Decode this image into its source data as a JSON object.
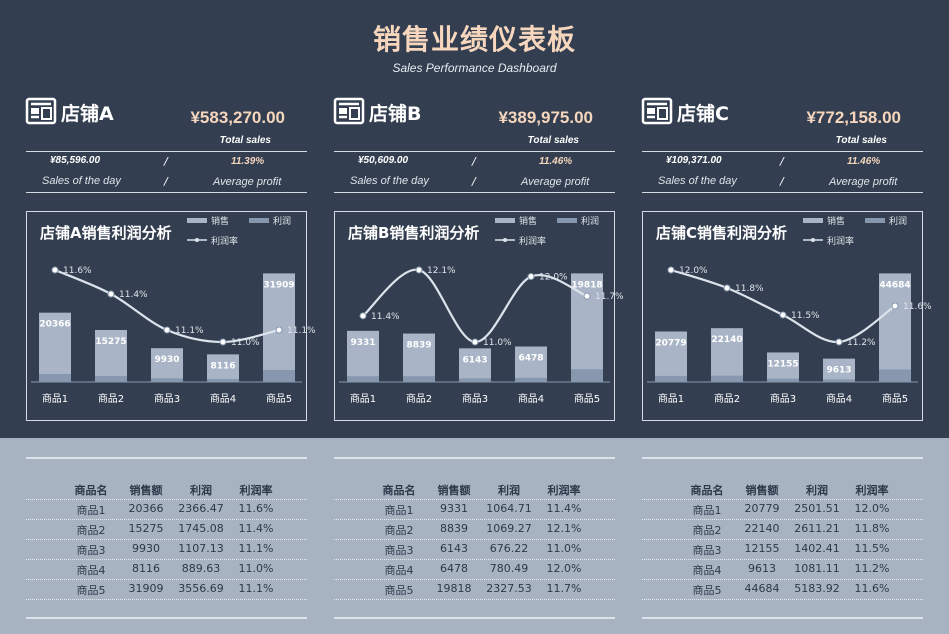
{
  "title": "销售业绩仪表板",
  "subtitle": "Sales Performance Dashboard",
  "colors": {
    "background_dark": "#333f50",
    "background_light": "#a8b3c2",
    "accent_peach": "#f6d6bd",
    "bar_sales": "#a9b5c6",
    "bar_profit": "#8797ae",
    "line": "#dde3ec"
  },
  "icons": [
    "store-icon"
  ],
  "table_headers": [
    "商品名",
    "销售额",
    "利润",
    "利润率"
  ],
  "legend_labels": {
    "sales": "销售",
    "profit": "利润",
    "rate": "利润率"
  },
  "stores": [
    {
      "name": "店铺A",
      "total": "¥583,270.00",
      "total_label": "Total sales",
      "day_value": "¥85,596.00",
      "day_label": "Sales of the day",
      "avg_value": "11.39%",
      "avg_label": "Average profit",
      "sep": "/",
      "chart_title": "店铺A销售利润分析",
      "rows": [
        [
          "商品1",
          "20366",
          "2366.47",
          "11.6%"
        ],
        [
          "商品2",
          "15275",
          "1745.08",
          "11.4%"
        ],
        [
          "商品3",
          "9930",
          "1107.13",
          "11.1%"
        ],
        [
          "商品4",
          "8116",
          "889.63",
          "11.0%"
        ],
        [
          "商品5",
          "31909",
          "3556.69",
          "11.1%"
        ]
      ]
    },
    {
      "name": "店铺B",
      "total": "¥389,975.00",
      "total_label": "Total sales",
      "day_value": "¥50,609.00",
      "day_label": "Sales of the day",
      "avg_value": "11.46%",
      "avg_label": "Average profit",
      "sep": "/",
      "chart_title": "店铺B销售利润分析",
      "rows": [
        [
          "商品1",
          "9331",
          "1064.71",
          "11.4%"
        ],
        [
          "商品2",
          "8839",
          "1069.27",
          "12.1%"
        ],
        [
          "商品3",
          "6143",
          "676.22",
          "11.0%"
        ],
        [
          "商品4",
          "6478",
          "780.49",
          "12.0%"
        ],
        [
          "商品5",
          "19818",
          "2327.53",
          "11.7%"
        ]
      ]
    },
    {
      "name": "店铺C",
      "total": "¥772,158.00",
      "total_label": "Total sales",
      "day_value": "¥109,371.00",
      "day_label": "Sales of the day",
      "avg_value": "11.46%",
      "avg_label": "Average profit",
      "sep": "/",
      "chart_title": "店铺C销售利润分析",
      "rows": [
        [
          "商品1",
          "20779",
          "2501.51",
          "12.0%"
        ],
        [
          "商品2",
          "22140",
          "2611.21",
          "11.8%"
        ],
        [
          "商品3",
          "12155",
          "1402.41",
          "11.5%"
        ],
        [
          "商品4",
          "9613",
          "1081.11",
          "11.2%"
        ],
        [
          "商品5",
          "44684",
          "5183.92",
          "11.6%"
        ]
      ]
    }
  ],
  "chart_data": [
    {
      "type": "bar",
      "title": "店铺A销售利润分析",
      "categories": [
        "商品1",
        "商品2",
        "商品3",
        "商品4",
        "商品5"
      ],
      "series": [
        {
          "name": "销售",
          "values": [
            20366,
            15275,
            9930,
            8116,
            31909
          ]
        },
        {
          "name": "利润",
          "values": [
            2366.47,
            1745.08,
            1107.13,
            889.63,
            3556.69
          ]
        },
        {
          "name": "利润率",
          "type": "line",
          "values": [
            11.6,
            11.4,
            11.1,
            11.0,
            11.1
          ],
          "labels": [
            "11.6%",
            "11.4%",
            "11.1%",
            "11.0%",
            "11.1%"
          ]
        }
      ],
      "legend": "top-right"
    },
    {
      "type": "bar",
      "title": "店铺B销售利润分析",
      "categories": [
        "商品1",
        "商品2",
        "商品3",
        "商品4",
        "商品5"
      ],
      "series": [
        {
          "name": "销售",
          "values": [
            9331,
            8839,
            6143,
            6478,
            19818
          ]
        },
        {
          "name": "利润",
          "values": [
            1064.71,
            1069.27,
            676.22,
            780.49,
            2327.53
          ]
        },
        {
          "name": "利润率",
          "type": "line",
          "values": [
            11.4,
            12.1,
            11.0,
            12.0,
            11.7
          ],
          "labels": [
            "11.4%",
            "12.1%",
            "11.0%",
            "12.0%",
            "11.7%"
          ]
        }
      ],
      "legend": "top-right"
    },
    {
      "type": "bar",
      "title": "店铺C销售利润分析",
      "categories": [
        "商品1",
        "商品2",
        "商品3",
        "商品4",
        "商品5"
      ],
      "series": [
        {
          "name": "销售",
          "values": [
            20779,
            22140,
            12155,
            9613,
            44684
          ]
        },
        {
          "name": "利润",
          "values": [
            2501.51,
            2611.21,
            1402.41,
            1081.11,
            5183.92
          ]
        },
        {
          "name": "利润率",
          "type": "line",
          "values": [
            12.0,
            11.8,
            11.5,
            11.2,
            11.6
          ],
          "labels": [
            "12.0%",
            "11.8%",
            "11.5%",
            "11.2%",
            "11.6%"
          ]
        }
      ],
      "legend": "top-right"
    }
  ]
}
